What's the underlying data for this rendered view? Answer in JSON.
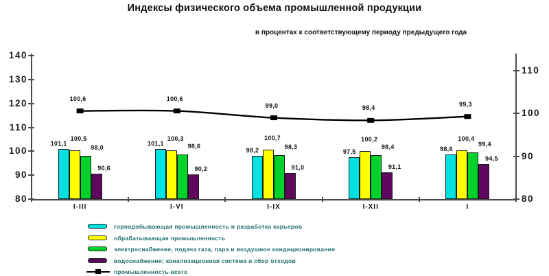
{
  "chart_data": {
    "type": "bar",
    "title": "Индексы физического объема промышленной продукции",
    "subtitle": "в процентах к соответствующему периоду предыдущего года",
    "categories": [
      "I-III",
      "I-VI",
      "I-IX",
      "I-XII",
      "I"
    ],
    "series": [
      {
        "type": "bar",
        "name": "горнодобывающая промышленность и разработка карьеров",
        "color": "#00E1E1",
        "axis": "left",
        "values": [
          101.1,
          101.1,
          98.2,
          97.5,
          98.6
        ]
      },
      {
        "type": "bar",
        "name": "обрабатывающая промышленность",
        "color": "#FFFF00",
        "axis": "left",
        "values": [
          100.5,
          100.3,
          100.7,
          100.2,
          100.4
        ]
      },
      {
        "type": "bar",
        "name": "электроснабжение, подача газа, пара и воздушное кондиционирование",
        "color": "#00D22B",
        "axis": "left",
        "values": [
          98.0,
          98.6,
          98.3,
          98.4,
          99.4
        ]
      },
      {
        "type": "bar",
        "name": "водоснабжение; канализационная система и сбор отходов",
        "color": "#5E085E",
        "axis": "left",
        "values": [
          90.6,
          90.2,
          91.0,
          91.1,
          94.5
        ]
      },
      {
        "type": "line",
        "name": "промышленность-всего",
        "color": "#000000",
        "axis": "right",
        "values": [
          100.6,
          100.6,
          99.0,
          98.4,
          99.3
        ]
      }
    ],
    "left_axis": {
      "min": 80,
      "max": 140,
      "ticks": [
        80,
        90,
        100,
        110,
        120,
        130,
        140
      ]
    },
    "right_axis": {
      "min": 80,
      "max": 110,
      "ticks": [
        80,
        90,
        100,
        110
      ]
    },
    "decimal_separator": ",",
    "grid": "off",
    "legend_position": "bottom",
    "colors": {
      "legend_text": "#1E6B6B",
      "axis_text": "#1A1A1A",
      "axis_line": "#4A4A4A",
      "value_text": "#111111"
    }
  }
}
